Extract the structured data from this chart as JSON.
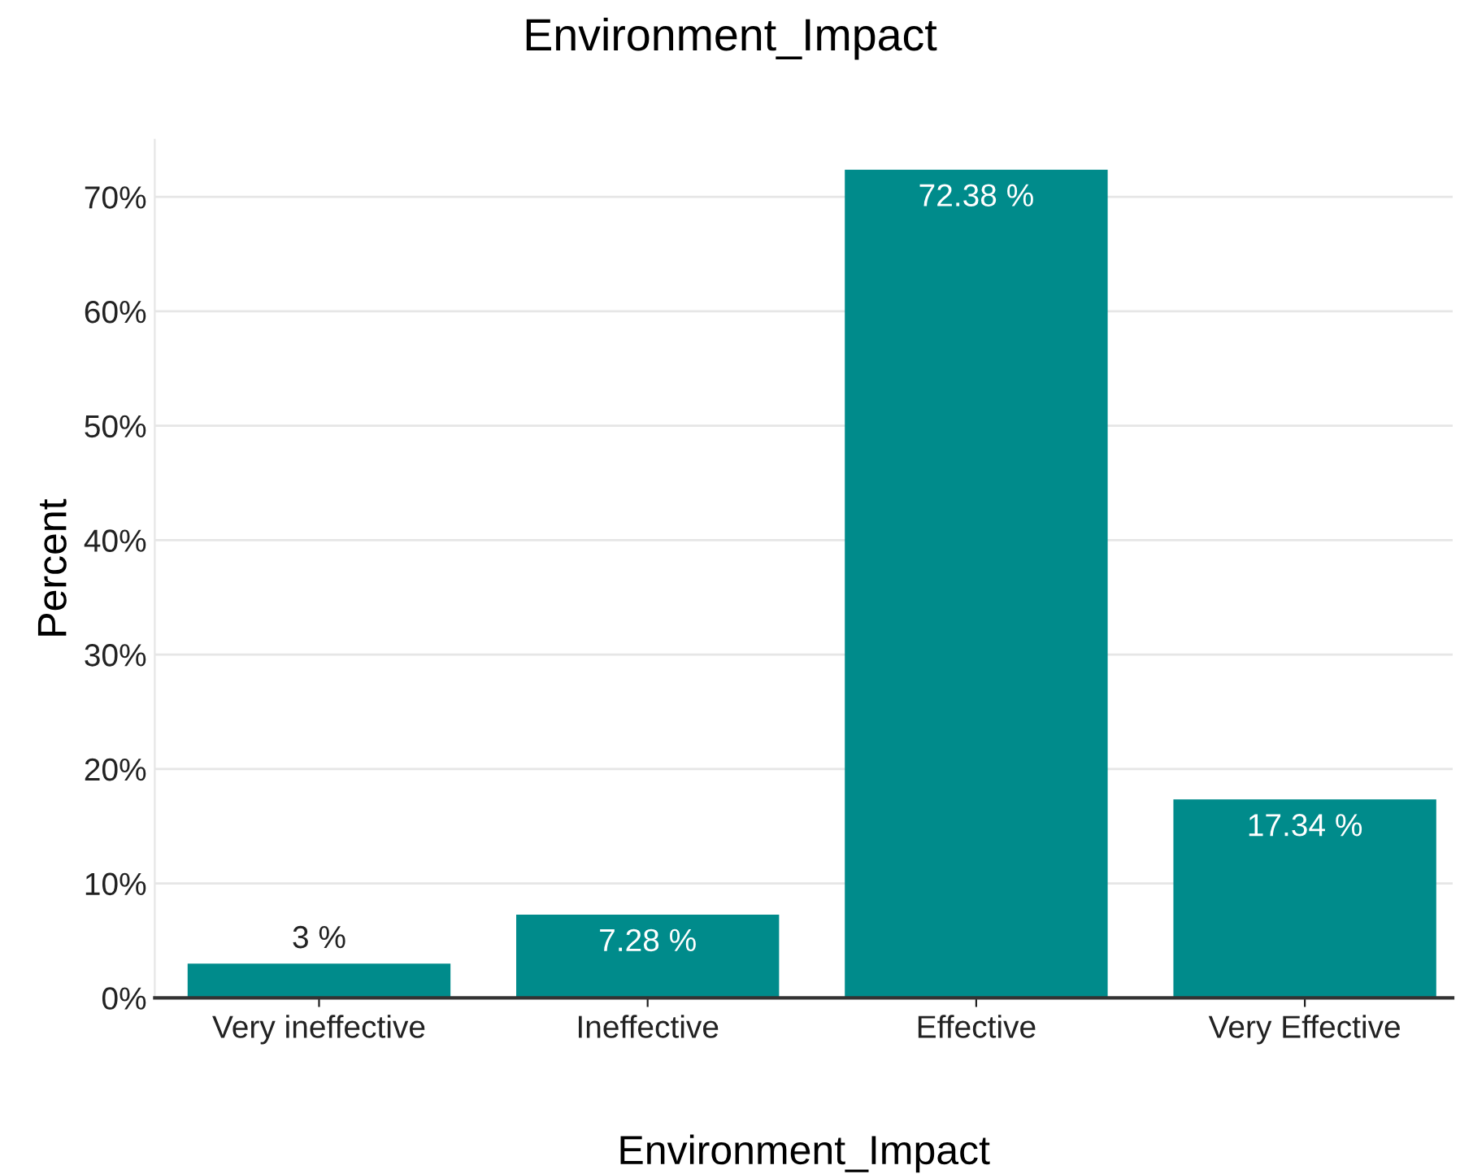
{
  "chart_data": {
    "type": "bar",
    "title": "Environment_Impact",
    "xlabel": "Environment_Impact",
    "ylabel": "Percent",
    "categories": [
      "Very ineffective",
      "Ineffective",
      "Effective",
      "Very Effective"
    ],
    "values": [
      3,
      7.28,
      72.38,
      17.34
    ],
    "value_labels": [
      "3 %",
      "7.28 %",
      "72.38 %",
      "17.34 %"
    ],
    "color": "#008b8b",
    "ylim": [
      0,
      75
    ],
    "yticks": [
      {
        "value": 0,
        "label": "0%"
      },
      {
        "value": 10,
        "label": "10%"
      },
      {
        "value": 20,
        "label": "20%"
      },
      {
        "value": 30,
        "label": "30%"
      },
      {
        "value": 40,
        "label": "40%"
      },
      {
        "value": 50,
        "label": "50%"
      },
      {
        "value": 60,
        "label": "60%"
      },
      {
        "value": 70,
        "label": "70%"
      }
    ],
    "grid": "y"
  }
}
